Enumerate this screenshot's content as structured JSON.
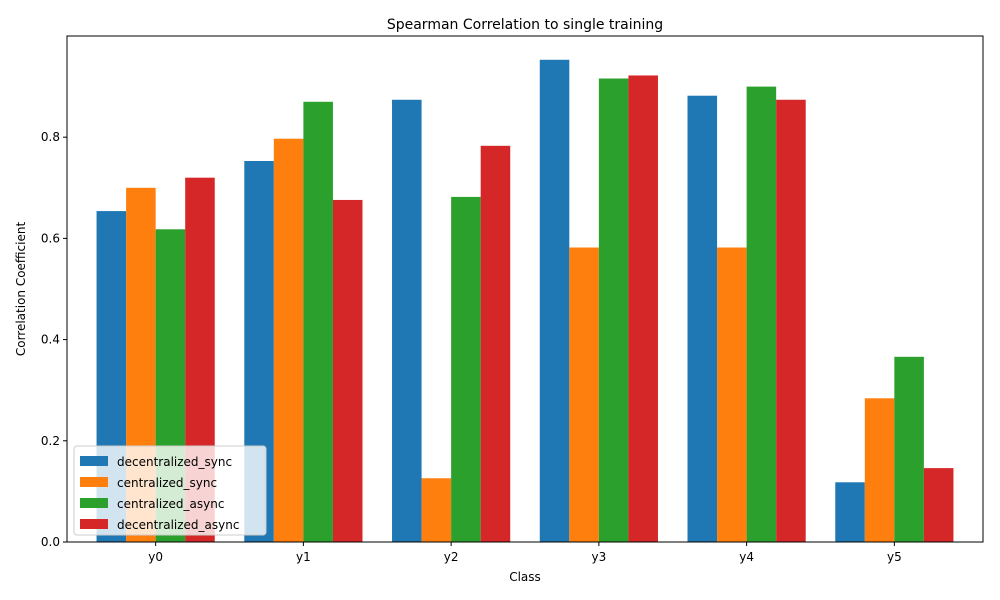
{
  "chart_data": {
    "type": "bar",
    "title": "Spearman Correlation to single training",
    "xlabel": "Class",
    "ylabel": "Correlation Coefficient",
    "categories": [
      "y0",
      "y1",
      "y2",
      "y3",
      "y4",
      "y5"
    ],
    "ylim": [
      0,
      1.0
    ],
    "yticks": [
      0.0,
      0.2,
      0.4,
      0.6,
      0.8
    ],
    "ytick_labels": [
      "0.0",
      "0.2",
      "0.4",
      "0.6",
      "0.8"
    ],
    "legend_position": "lower-left",
    "grid": false,
    "series": [
      {
        "name": "decentralized_sync",
        "color": "#1f77b4",
        "values": [
          0.654,
          0.753,
          0.874,
          0.953,
          0.882,
          0.118
        ]
      },
      {
        "name": "centralized_sync",
        "color": "#ff7f0e",
        "values": [
          0.7,
          0.797,
          0.126,
          0.582,
          0.582,
          0.284
        ]
      },
      {
        "name": "centralized_async",
        "color": "#2ca02c",
        "values": [
          0.618,
          0.87,
          0.682,
          0.916,
          0.9,
          0.366
        ]
      },
      {
        "name": "decentralized_async",
        "color": "#d62728",
        "values": [
          0.72,
          0.676,
          0.783,
          0.922,
          0.874,
          0.146
        ]
      }
    ]
  }
}
